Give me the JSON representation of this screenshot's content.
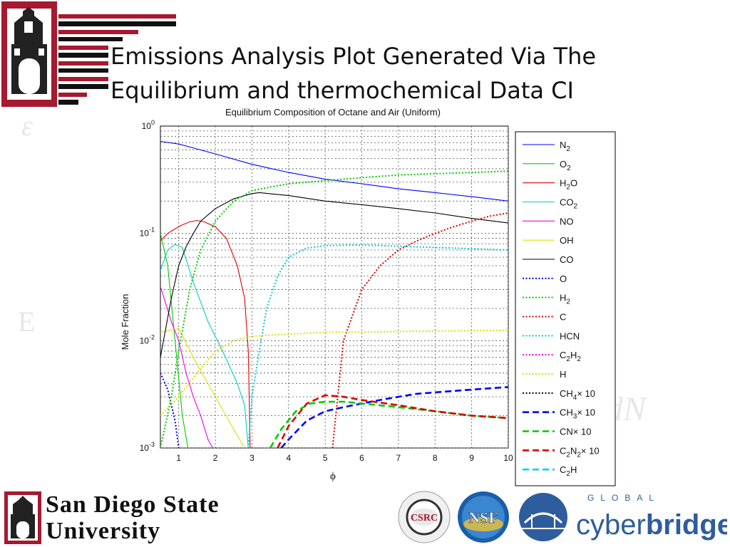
{
  "slide": {
    "title_line1": "Emissions Analysis Plot Generated Via The",
    "title_line2": "Equilibrium and thermochemical Data CI"
  },
  "footer": {
    "university_line1": "San Diego State",
    "university_line2": "University",
    "csrc_label": "CSRC",
    "nsf_label": "NSF",
    "cyberbridges_small": "GLOBAL",
    "cyberbridges_word1": "cyber",
    "cyberbridges_word2": "bridges"
  },
  "colors": {
    "sdsu_red": "#A6192E",
    "cyberbridges_blue": "#2E5D9E"
  },
  "chart_data": {
    "type": "line",
    "title": "Equilibrium Composition of Octane and Air (Uniform)",
    "xlabel": "ϕ",
    "ylabel": "Mole Fraction",
    "xlim": [
      0.5,
      10
    ],
    "ylim": [
      0.001,
      1
    ],
    "yscale": "log",
    "xticks": [
      "1",
      "2",
      "3",
      "4",
      "5",
      "6",
      "7",
      "8",
      "9",
      "10"
    ],
    "yticks": [
      {
        "base": "10",
        "exp": "0"
      },
      {
        "base": "10",
        "exp": "-1"
      },
      {
        "base": "10",
        "exp": "-2"
      },
      {
        "base": "10",
        "exp": "-3"
      }
    ],
    "grid": true,
    "legend_position": "right",
    "series": [
      {
        "label": [
          [
            "N",
            ""
          ],
          [
            "2",
            "sub"
          ]
        ],
        "color": "#0000ff",
        "style": "solid",
        "x": [
          0.5,
          1,
          2,
          3,
          4,
          5,
          6,
          7,
          8,
          9,
          10
        ],
        "y": [
          0.72,
          0.68,
          0.55,
          0.44,
          0.37,
          0.32,
          0.29,
          0.26,
          0.24,
          0.22,
          0.2
        ]
      },
      {
        "label": [
          [
            "O",
            ""
          ],
          [
            "2",
            "sub"
          ]
        ],
        "color": "#00cc00",
        "style": "solid",
        "x": [
          0.5,
          0.7,
          0.9,
          1.1,
          1.3
        ],
        "y": [
          0.1,
          0.05,
          0.01,
          0.002,
          0.0008
        ]
      },
      {
        "label": [
          [
            "H",
            ""
          ],
          [
            "2",
            "sub"
          ],
          [
            "O",
            ""
          ]
        ],
        "color": "#dd0000",
        "style": "solid",
        "x": [
          0.5,
          0.7,
          0.9,
          1.1,
          1.3,
          1.5,
          1.7,
          2,
          2.3,
          2.6,
          2.8,
          2.9,
          2.95
        ],
        "y": [
          0.085,
          0.1,
          0.11,
          0.12,
          0.128,
          0.132,
          0.128,
          0.115,
          0.09,
          0.05,
          0.025,
          0.008,
          0.001
        ]
      },
      {
        "label": [
          [
            "CO",
            ""
          ],
          [
            "2",
            "sub"
          ]
        ],
        "color": "#00cccc",
        "style": "solid",
        "x": [
          0.5,
          0.7,
          0.9,
          1.1,
          1.4,
          1.8,
          2.2,
          2.6,
          2.8,
          2.9
        ],
        "y": [
          0.045,
          0.07,
          0.079,
          0.074,
          0.035,
          0.015,
          0.008,
          0.004,
          0.0025,
          0.001
        ]
      },
      {
        "label": [
          [
            "NO",
            ""
          ]
        ],
        "color": "#ee00ee",
        "style": "solid",
        "x": [
          0.5,
          0.8,
          1.0,
          1.2,
          1.4,
          1.6,
          1.8,
          2.0
        ],
        "y": [
          0.032,
          0.015,
          0.01,
          0.005,
          0.003,
          0.002,
          0.0012,
          0.0009
        ]
      },
      {
        "label": [
          [
            "OH",
            ""
          ]
        ],
        "color": "#dddd00",
        "style": "solid",
        "x": [
          0.5,
          1,
          1.5,
          2,
          2.5,
          2.8
        ],
        "y": [
          0.012,
          0.013,
          0.006,
          0.003,
          0.0015,
          0.001
        ]
      },
      {
        "label": [
          [
            "CO",
            ""
          ]
        ],
        "color": "#000000",
        "style": "solid",
        "x": [
          0.5,
          0.8,
          1,
          1.2,
          1.4,
          1.6,
          2,
          2.5,
          3,
          3.2,
          4,
          5,
          6,
          7,
          8,
          9,
          10
        ],
        "y": [
          0.007,
          0.025,
          0.05,
          0.075,
          0.1,
          0.13,
          0.17,
          0.21,
          0.235,
          0.24,
          0.225,
          0.2,
          0.185,
          0.17,
          0.155,
          0.138,
          0.125
        ]
      },
      {
        "label": [
          [
            "O",
            ""
          ]
        ],
        "color": "#0000ff",
        "style": "dotted",
        "x": [
          0.5,
          0.7,
          0.9,
          1.0
        ],
        "y": [
          0.005,
          0.0035,
          0.0018,
          0.001
        ]
      },
      {
        "label": [
          [
            "H",
            ""
          ],
          [
            "2",
            "sub"
          ]
        ],
        "color": "#00cc00",
        "style": "dotted",
        "x": [
          0.5,
          0.8,
          1,
          1.3,
          1.6,
          2,
          2.5,
          3,
          3.5,
          4,
          5,
          6,
          7,
          8,
          9,
          10
        ],
        "y": [
          0.001,
          0.003,
          0.008,
          0.03,
          0.07,
          0.13,
          0.2,
          0.25,
          0.27,
          0.29,
          0.31,
          0.33,
          0.35,
          0.36,
          0.37,
          0.38
        ]
      },
      {
        "label": [
          [
            "C",
            ""
          ]
        ],
        "color": "#dd0000",
        "style": "dotted",
        "x": [
          5.2,
          5.5,
          6,
          6.5,
          7,
          7.5,
          8,
          8.5,
          9,
          9.5,
          10
        ],
        "y": [
          0.001,
          0.01,
          0.03,
          0.05,
          0.07,
          0.085,
          0.1,
          0.115,
          0.13,
          0.145,
          0.155
        ]
      },
      {
        "label": [
          [
            "HCN",
            ""
          ]
        ],
        "color": "#00cccc",
        "style": "dotted",
        "x": [
          2.9,
          3,
          3.2,
          3.4,
          3.7,
          4,
          4.5,
          5,
          6,
          7,
          8,
          9,
          10
        ],
        "y": [
          0.001,
          0.003,
          0.008,
          0.02,
          0.04,
          0.06,
          0.073,
          0.077,
          0.078,
          0.076,
          0.074,
          0.072,
          0.07
        ]
      },
      {
        "label": [
          [
            "C",
            ""
          ],
          [
            "2",
            "sub"
          ],
          [
            "H",
            ""
          ],
          [
            "2",
            "sub"
          ]
        ],
        "color": "#ee00ee",
        "style": "dotted",
        "x": [],
        "y": []
      },
      {
        "label": [
          [
            "H",
            ""
          ]
        ],
        "color": "#dddd00",
        "style": "dotted",
        "x": [
          0.5,
          1,
          1.5,
          2,
          2.5,
          3,
          4,
          5,
          6,
          7,
          8,
          9,
          10
        ],
        "y": [
          0.002,
          0.003,
          0.005,
          0.008,
          0.01,
          0.011,
          0.0115,
          0.012,
          0.012,
          0.0122,
          0.0123,
          0.0124,
          0.0125
        ]
      },
      {
        "label": [
          [
            "CH",
            ""
          ],
          [
            "4",
            "sub"
          ],
          [
            "× 10",
            ""
          ]
        ],
        "color": "#000000",
        "style": "dotted",
        "x": [],
        "y": []
      },
      {
        "label": [
          [
            "CH",
            ""
          ],
          [
            "3",
            "sub"
          ],
          [
            "× 10",
            ""
          ]
        ],
        "color": "#0000ff",
        "style": "dashed",
        "x": [
          3.8,
          4,
          4.5,
          5,
          5.5,
          6,
          6.5,
          7,
          7.5,
          8,
          9,
          10
        ],
        "y": [
          0.001,
          0.0012,
          0.0018,
          0.0022,
          0.0024,
          0.0026,
          0.0028,
          0.003,
          0.0032,
          0.0033,
          0.0035,
          0.0037
        ]
      },
      {
        "label": [
          [
            "CN",
            ""
          ],
          [
            "× 10",
            ""
          ]
        ],
        "color": "#00cc00",
        "style": "dashed",
        "x": [
          3.5,
          3.8,
          4.2,
          4.6,
          5,
          5.5,
          6,
          7,
          8,
          9,
          10
        ],
        "y": [
          0.001,
          0.0015,
          0.0022,
          0.0026,
          0.0027,
          0.0027,
          0.0026,
          0.0024,
          0.0022,
          0.002,
          0.0019
        ]
      },
      {
        "label": [
          [
            "C",
            ""
          ],
          [
            "2",
            "sub"
          ],
          [
            "N",
            ""
          ],
          [
            "2",
            "sub"
          ],
          [
            "× 10",
            ""
          ]
        ],
        "color": "#dd0000",
        "style": "dashed",
        "x": [
          3.7,
          4,
          4.5,
          5,
          5.5,
          6,
          7,
          8,
          9,
          10
        ],
        "y": [
          0.001,
          0.0016,
          0.0026,
          0.0031,
          0.003,
          0.0028,
          0.0025,
          0.0022,
          0.002,
          0.0019
        ]
      },
      {
        "label": [
          [
            "C",
            ""
          ],
          [
            "2",
            "sub"
          ],
          [
            "H",
            ""
          ]
        ],
        "color": "#00ccff",
        "style": "dashed",
        "x": [],
        "y": []
      }
    ]
  }
}
